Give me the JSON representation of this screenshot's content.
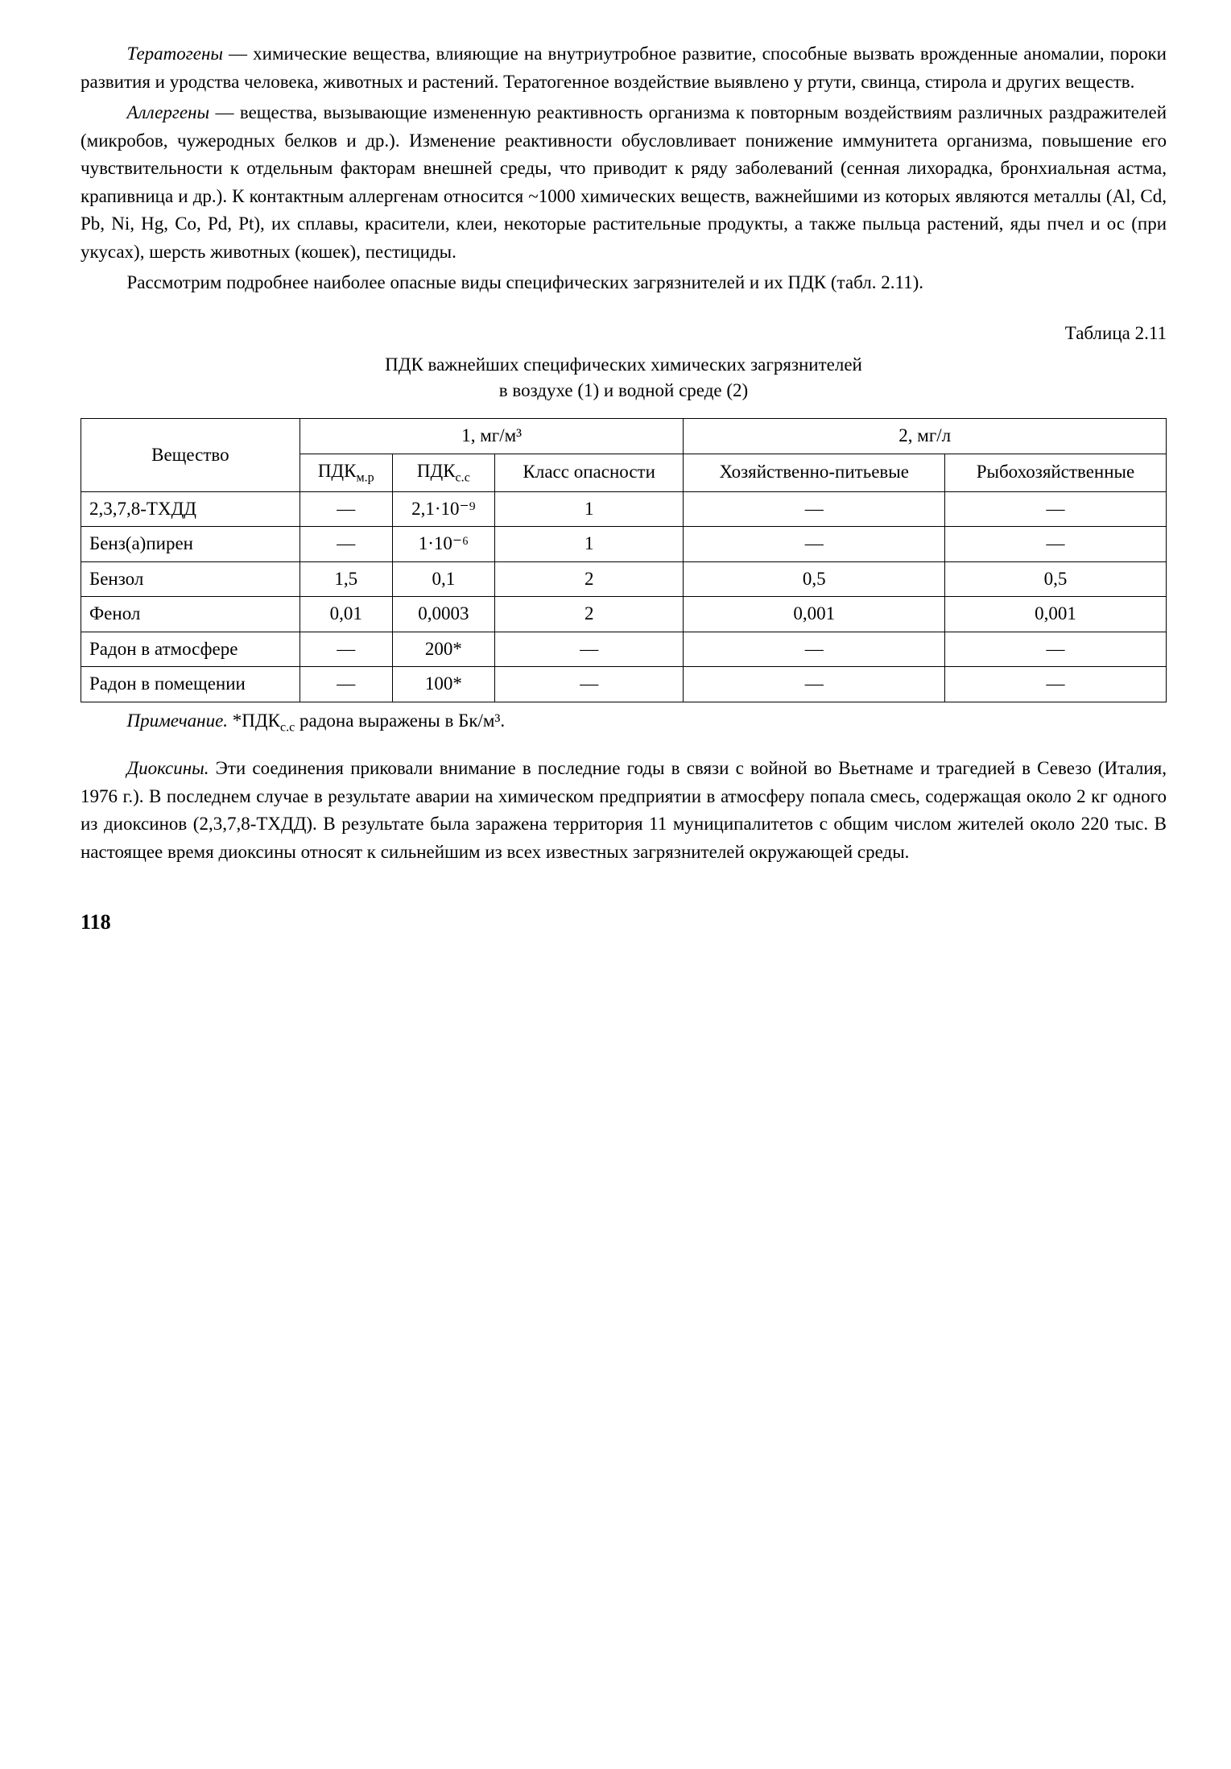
{
  "para1": {
    "italic_lead": "Тератогены",
    "text": " — химические вещества, влияющие на внутриутробное развитие, способные вызвать врожденные аномалии, пороки развития и уродства человека, животных и растений. Тератогенное воздействие выявлено у ртути, свинца, стирола и других веществ."
  },
  "para2": {
    "italic_lead": "Аллергены",
    "text": " — вещества, вызывающие измененную реактивность организма к повторным воздействиям различных раздражителей (микробов, чужеродных белков и др.). Изменение реактивности обусловливает понижение иммунитета организма, повышение его чувствительности к отдельным факторам внешней среды, что приводит к ряду заболеваний (сенная лихорадка, бронхиальная астма, крапивница и др.). К контактным аллергенам относится ~1000 химических веществ, важнейшими из которых являются металлы (Al, Cd, Pb, Ni, Hg, Co, Pd, Pt), их сплавы, красители, клеи, некоторые растительные продукты, а также пыльца растений, яды пчел и ос (при укусах), шерсть животных (кошек), пестициды."
  },
  "para3": {
    "text": "Рассмотрим подробнее наиболее опасные виды специфических загрязнителей и их ПДК (табл. 2.11)."
  },
  "table": {
    "caption_right": "Таблица 2.11",
    "title_line1": "ПДК важнейших специфических химических загрязнителей",
    "title_line2": "в воздухе (1) и водной среде (2)",
    "headers": {
      "substance": "Вещество",
      "group1": "1, мг/м³",
      "group2": "2, мг/л",
      "pdk_mr": "ПДКм.р",
      "pdk_ss": "ПДКс.с",
      "danger_class": "Класс опасности",
      "household": "Хозяйственно-питьевые",
      "fishery": "Рыбохозяйственные"
    },
    "rows": [
      {
        "name": "2,3,7,8-ТХДД",
        "pdk_mr": "—",
        "pdk_ss": "2,1·10⁻⁹",
        "class": "1",
        "household": "—",
        "fishery": "—"
      },
      {
        "name": "Бенз(а)пирен",
        "pdk_mr": "—",
        "pdk_ss": "1·10⁻⁶",
        "class": "1",
        "household": "—",
        "fishery": "—"
      },
      {
        "name": "Бензол",
        "pdk_mr": "1,5",
        "pdk_ss": "0,1",
        "class": "2",
        "household": "0,5",
        "fishery": "0,5"
      },
      {
        "name": "Фенол",
        "pdk_mr": "0,01",
        "pdk_ss": "0,0003",
        "class": "2",
        "household": "0,001",
        "fishery": "0,001"
      },
      {
        "name": "Радон в атмосфере",
        "pdk_mr": "—",
        "pdk_ss": "200*",
        "class": "—",
        "household": "—",
        "fishery": "—"
      },
      {
        "name": "Радон в помещении",
        "pdk_mr": "—",
        "pdk_ss": "100*",
        "class": "—",
        "household": "—",
        "fishery": "—"
      }
    ],
    "note_italic": "Примечание.",
    "note_text": " *ПДКс.с радона выражены в Бк/м³."
  },
  "para4": {
    "italic_lead": "Диоксины.",
    "text": " Эти соединения приковали внимание в последние годы в связи с войной во Вьетнаме и трагедией в Севезо (Италия, 1976 г.). В последнем случае в результате аварии на химическом предприятии в атмосферу попала смесь, содержащая около 2 кг одного из диоксинов (2,3,7,8-ТХДД). В результате была заражена территория 11 муниципалитетов с общим числом жителей около 220 тыс. В настоящее время диоксины относят к сильнейшим из всех известных загрязнителей окружающей среды."
  },
  "page_number": "118"
}
